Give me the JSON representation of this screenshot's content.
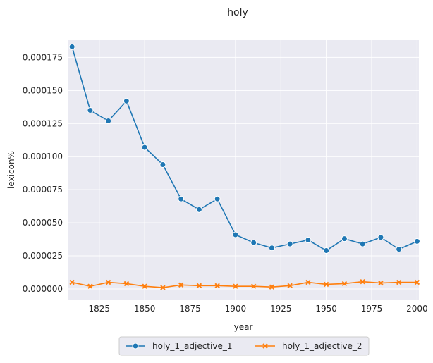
{
  "chart_data": {
    "type": "line",
    "title": "holy",
    "xlabel": "year",
    "ylabel": "lexicon%",
    "xlim": [
      1808,
      2001
    ],
    "ylim": [
      -8e-06,
      0.000188
    ],
    "grid": true,
    "legend_position": "bottom-center",
    "x_ticks": [
      1825,
      1850,
      1875,
      1900,
      1925,
      1950,
      1975,
      2000
    ],
    "x_tick_labels": [
      "1825",
      "1850",
      "1875",
      "1900",
      "1925",
      "1950",
      "1975",
      "2000"
    ],
    "y_ticks": [
      0.0,
      2.5e-05,
      5e-05,
      7.5e-05,
      0.0001,
      0.000125,
      0.00015,
      0.000175
    ],
    "y_tick_labels": [
      "0.000000",
      "0.000025",
      "0.000050",
      "0.000075",
      "0.000100",
      "0.000125",
      "0.000150",
      "0.000175"
    ],
    "x": [
      1810,
      1820,
      1830,
      1840,
      1850,
      1860,
      1870,
      1880,
      1890,
      1900,
      1910,
      1920,
      1930,
      1940,
      1950,
      1960,
      1970,
      1980,
      1990,
      2000
    ],
    "series": [
      {
        "name": "holy_1_adjective_1",
        "color": "#1f77b4",
        "marker": "circle",
        "values": [
          0.000183,
          0.000135,
          0.000127,
          0.000142,
          0.000107,
          9.4e-05,
          6.8e-05,
          6e-05,
          6.8e-05,
          4.1e-05,
          3.5e-05,
          3.1e-05,
          3.4e-05,
          3.7e-05,
          2.9e-05,
          3.8e-05,
          3.4e-05,
          3.9e-05,
          3e-05,
          3.6e-05
        ]
      },
      {
        "name": "holy_1_adjective_2",
        "color": "#ff7f0e",
        "marker": "x",
        "values": [
          5e-06,
          2e-06,
          5e-06,
          4e-06,
          2e-06,
          1e-06,
          3e-06,
          2.5e-06,
          2.5e-06,
          2e-06,
          2e-06,
          1.5e-06,
          2.5e-06,
          5e-06,
          3.5e-06,
          4e-06,
          5.5e-06,
          4.5e-06,
          5e-06,
          5e-06
        ]
      }
    ],
    "background_color": "#eaeaf2",
    "grid_color": "#ffffff"
  }
}
